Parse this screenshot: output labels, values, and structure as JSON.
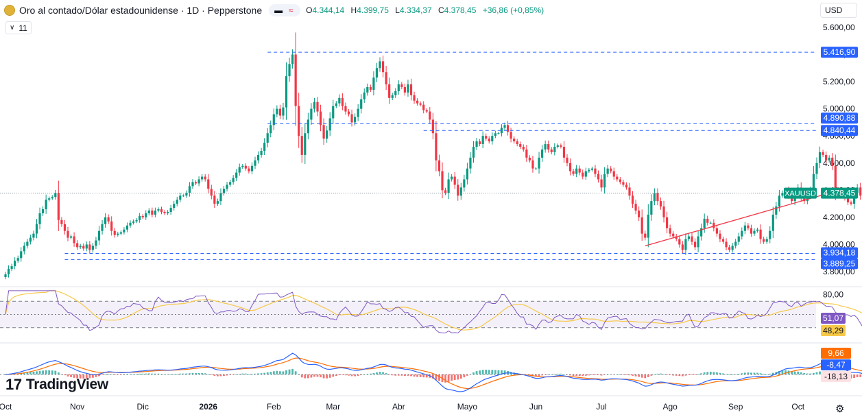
{
  "header": {
    "title": "Oro al contado/Dólar estadounidense · 1D · Pepperstone",
    "ohlc": [
      {
        "k": "O",
        "v": "4.344,14"
      },
      {
        "k": "H",
        "v": "4.399,75"
      },
      {
        "k": "L",
        "v": "4.334,37"
      },
      {
        "k": "C",
        "v": "4.378,45"
      },
      {
        "k": "",
        "v": "+36,86 (+0,85%)"
      }
    ],
    "indicator_count": "11",
    "currency": "USD",
    "icons": [
      "gold-coin-icon",
      "minus-icon",
      "wave-icon",
      "chevron-down-icon",
      "gear-icon"
    ]
  },
  "brand": "TradingView",
  "colors": {
    "up": "#089981",
    "down": "#f23645",
    "dashed": "#2962ff",
    "trend": "#f23645",
    "rsi": "#7e57c2",
    "rsi_ma": "#f7c948",
    "macd": "#2962ff",
    "signal": "#ff6d00"
  },
  "chart_data": [
    {
      "type": "candlestick",
      "symbol": "XAUUSD",
      "x_ticks": [
        "Oct",
        "Nov",
        "Dic",
        "2026",
        "Feb",
        "Mar",
        "Abr",
        "Mayo",
        "Jun",
        "Jul",
        "Ago",
        "Sep",
        "Oct"
      ],
      "y_ticks": [
        "5.600,00",
        "5.400,00",
        "5.200,00",
        "5.000,00",
        "4.800,00",
        "4.600,00",
        "4.400,00",
        "4.200,00",
        "4.000,00",
        "3.800,00"
      ],
      "ylim": [
        3780,
        5640
      ],
      "last_price": {
        "label": "XAUUSD",
        "value": 4378.45,
        "text": "4.378,45"
      },
      "price_lines": [
        {
          "value": 5416.9,
          "text": "5.416,90"
        },
        {
          "value": 4890.88,
          "text": "4.890,88"
        },
        {
          "value": 4840.44,
          "text": "4.840,44"
        },
        {
          "value": 3934.18,
          "text": "3.934,18"
        },
        {
          "value": 3889.25,
          "text": "3.889,25"
        }
      ],
      "trendline": {
        "from": {
          "bar": 205,
          "value": 3990
        },
        "to": {
          "bar": 262,
          "value": 4315
        }
      },
      "close_series": [
        3780,
        3820,
        3840,
        3880,
        3900,
        3950,
        3990,
        4020,
        4050,
        4080,
        4150,
        4230,
        4260,
        4330,
        4340,
        4350,
        4380,
        4180,
        4150,
        4100,
        4050,
        4060,
        4010,
        3980,
        3990,
        3970,
        4000,
        3960,
        3990,
        4030,
        4100,
        4150,
        4200,
        4170,
        4100,
        4070,
        4080,
        4090,
        4110,
        4140,
        4160,
        4170,
        4180,
        4210,
        4200,
        4230,
        4250,
        4220,
        4250,
        4260,
        4240,
        4230,
        4240,
        4270,
        4300,
        4330,
        4360,
        4360,
        4380,
        4430,
        4460,
        4450,
        4480,
        4500,
        4480,
        4410,
        4360,
        4300,
        4320,
        4380,
        4410,
        4440,
        4460,
        4490,
        4530,
        4570,
        4580,
        4560,
        4540,
        4580,
        4620,
        4660,
        4690,
        4750,
        4820,
        4880,
        4960,
        5000,
        4950,
        5010,
        5240,
        5330,
        5400,
        5020,
        4800,
        4660,
        4820,
        4920,
        5000,
        5050,
        4980,
        4880,
        4780,
        4840,
        4930,
        5020,
        5040,
        5080,
        5020,
        4980,
        4960,
        4900,
        4940,
        5000,
        5070,
        5120,
        5160,
        5140,
        5230,
        5300,
        5350,
        5270,
        5180,
        5080,
        5100,
        5130,
        5180,
        5160,
        5120,
        5180,
        5100,
        5060,
        5040,
        5030,
        4990,
        4980,
        4920,
        4820,
        4620,
        4540,
        4400,
        4380,
        4480,
        4500,
        4440,
        4360,
        4420,
        4480,
        4560,
        4640,
        4720,
        4760,
        4740,
        4800,
        4780,
        4760,
        4800,
        4820,
        4820,
        4860,
        4880,
        4830,
        4780,
        4760,
        4740,
        4720,
        4700,
        4640,
        4620,
        4560,
        4560,
        4640,
        4700,
        4740,
        4700,
        4680,
        4720,
        4730,
        4720,
        4640,
        4600,
        4540,
        4520,
        4560,
        4530,
        4500,
        4540,
        4550,
        4560,
        4520,
        4480,
        4420,
        4520,
        4560,
        4540,
        4500,
        4480,
        4460,
        4440,
        4420,
        4360,
        4300,
        4250,
        4200,
        4080,
        4050,
        4220,
        4320,
        4380,
        4320,
        4280,
        4200,
        4120,
        4080,
        4060,
        4040,
        4000,
        3960,
        4040,
        4060,
        4020,
        3980,
        4060,
        4120,
        4190,
        4160,
        4160,
        4120,
        4080,
        4040,
        4020,
        3980,
        3960,
        3990,
        4020,
        4060,
        4100,
        4140,
        4120,
        4080,
        4100,
        4110,
        4040,
        4020,
        4040,
        4100,
        4220,
        4280,
        4360,
        4380,
        4400,
        4360,
        4320,
        4380,
        4420,
        4350,
        4320,
        4360,
        4400,
        4520,
        4600,
        4680,
        4660,
        4620,
        4640,
        4580,
        4400,
        4370,
        4360,
        4340,
        4310,
        4300,
        4380,
        4420,
        4360,
        4320,
        4300,
        4290,
        4320,
        4300,
        4260,
        4250,
        4280,
        4300,
        4378.45
      ]
    },
    {
      "type": "line",
      "name": "RSI",
      "y_ticks": [
        "80,00"
      ],
      "bands": [
        70,
        50,
        30
      ],
      "values": [
        {
          "text": "51,07",
          "value": 51.07
        },
        {
          "text": "48,29",
          "value": 48.29
        }
      ]
    },
    {
      "type": "line",
      "name": "MACD",
      "values": [
        {
          "text": "9,66",
          "value": 9.66
        },
        {
          "text": "-8,47",
          "value": -8.47
        },
        {
          "text": "-18,13",
          "value": -18.13
        }
      ]
    }
  ]
}
